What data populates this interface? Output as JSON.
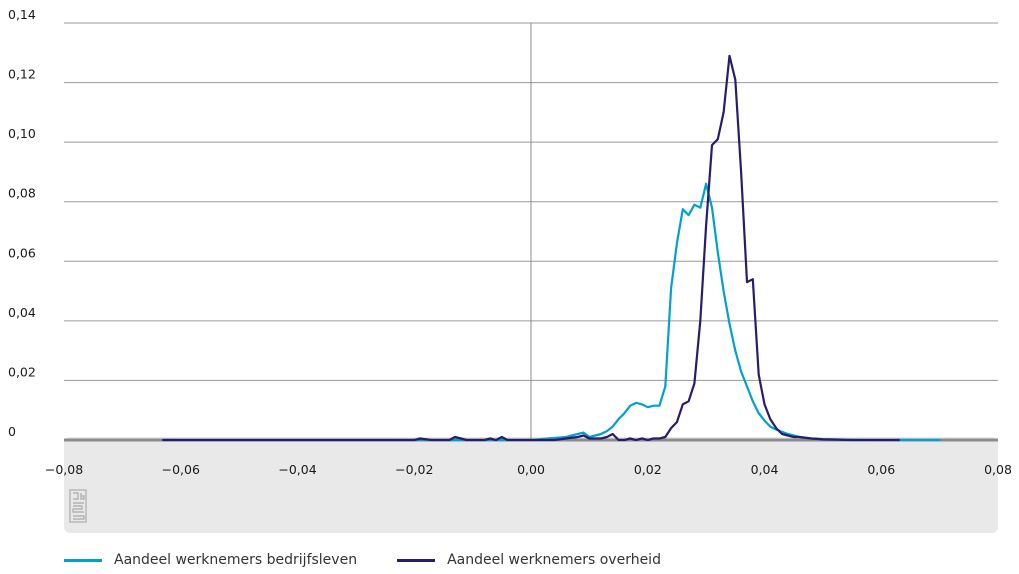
{
  "chart_data": {
    "type": "line",
    "xlim": [
      -0.08,
      0.08
    ],
    "ylim": [
      0,
      0.14
    ],
    "xticks": [
      -0.08,
      -0.06,
      -0.04,
      -0.02,
      0.0,
      0.02,
      0.04,
      0.06,
      0.08
    ],
    "yticks": [
      0,
      0.02,
      0.04,
      0.06,
      0.08,
      0.1,
      0.12,
      0.14
    ],
    "xtick_labels": [
      "−0,08",
      "−0,06",
      "−0,04",
      "−0,02",
      "0,00",
      "0,02",
      "0,04",
      "0,06",
      "0,08"
    ],
    "ytick_labels": [
      "0",
      "0,02",
      "0,04",
      "0,06",
      "0,08",
      "0,10",
      "0,12",
      "0,14"
    ],
    "grid": "horizontal",
    "legend_position": "bottom-left",
    "series": [
      {
        "name": "Aandeel werknemers bedrijfsleven",
        "color": "#00a1cd",
        "points": [
          [
            -0.063,
            0.0
          ],
          [
            -0.05,
            0.0
          ],
          [
            -0.04,
            0.0
          ],
          [
            -0.03,
            0.0
          ],
          [
            -0.02,
            0.0
          ],
          [
            -0.015,
            0.0
          ],
          [
            -0.01,
            0.0
          ],
          [
            -0.005,
            0.0
          ],
          [
            0.0,
            0.0
          ],
          [
            0.003,
            0.0005
          ],
          [
            0.006,
            0.001
          ],
          [
            0.008,
            0.002
          ],
          [
            0.009,
            0.0025
          ],
          [
            0.01,
            0.001
          ],
          [
            0.012,
            0.002
          ],
          [
            0.013,
            0.003
          ],
          [
            0.014,
            0.0045
          ],
          [
            0.015,
            0.007
          ],
          [
            0.016,
            0.009
          ],
          [
            0.017,
            0.0115
          ],
          [
            0.018,
            0.0125
          ],
          [
            0.019,
            0.012
          ],
          [
            0.02,
            0.011
          ],
          [
            0.021,
            0.0115
          ],
          [
            0.022,
            0.0115
          ],
          [
            0.023,
            0.018
          ],
          [
            0.024,
            0.051
          ],
          [
            0.025,
            0.066
          ],
          [
            0.026,
            0.0775
          ],
          [
            0.027,
            0.0755
          ],
          [
            0.028,
            0.079
          ],
          [
            0.029,
            0.078
          ],
          [
            0.03,
            0.086
          ],
          [
            0.031,
            0.078
          ],
          [
            0.032,
            0.063
          ],
          [
            0.033,
            0.05
          ],
          [
            0.034,
            0.039
          ],
          [
            0.035,
            0.03
          ],
          [
            0.036,
            0.023
          ],
          [
            0.037,
            0.018
          ],
          [
            0.038,
            0.013
          ],
          [
            0.039,
            0.009
          ],
          [
            0.04,
            0.0065
          ],
          [
            0.041,
            0.0045
          ],
          [
            0.042,
            0.0035
          ],
          [
            0.044,
            0.002
          ],
          [
            0.046,
            0.001
          ],
          [
            0.048,
            0.0005
          ],
          [
            0.05,
            0.0003
          ],
          [
            0.055,
            0.0001
          ],
          [
            0.06,
            0.0
          ],
          [
            0.065,
            0.0
          ],
          [
            0.07,
            0.0
          ]
        ]
      },
      {
        "name": "Aandeel werknemers overheid",
        "color": "#271d6c",
        "points": [
          [
            -0.063,
            0.0
          ],
          [
            -0.05,
            0.0
          ],
          [
            -0.04,
            0.0
          ],
          [
            -0.03,
            0.0
          ],
          [
            -0.02,
            0.0
          ],
          [
            -0.019,
            0.0005
          ],
          [
            -0.017,
            0.0
          ],
          [
            -0.014,
            0.0
          ],
          [
            -0.013,
            0.001
          ],
          [
            -0.012,
            0.0005
          ],
          [
            -0.011,
            0.0
          ],
          [
            -0.008,
            0.0
          ],
          [
            -0.007,
            0.0005
          ],
          [
            -0.006,
            0.0
          ],
          [
            -0.005,
            0.001
          ],
          [
            -0.004,
            0.0
          ],
          [
            0.0,
            0.0
          ],
          [
            0.004,
            0.0
          ],
          [
            0.006,
            0.0005
          ],
          [
            0.008,
            0.001
          ],
          [
            0.009,
            0.0015
          ],
          [
            0.01,
            0.0005
          ],
          [
            0.012,
            0.0005
          ],
          [
            0.013,
            0.001
          ],
          [
            0.014,
            0.002
          ],
          [
            0.015,
            0.0
          ],
          [
            0.016,
            0.0
          ],
          [
            0.017,
            0.0005
          ],
          [
            0.018,
            0.0
          ],
          [
            0.019,
            0.0005
          ],
          [
            0.02,
            0.0
          ],
          [
            0.021,
            0.0005
          ],
          [
            0.022,
            0.0005
          ],
          [
            0.023,
            0.001
          ],
          [
            0.024,
            0.004
          ],
          [
            0.025,
            0.006
          ],
          [
            0.026,
            0.012
          ],
          [
            0.027,
            0.013
          ],
          [
            0.028,
            0.019
          ],
          [
            0.029,
            0.04
          ],
          [
            0.03,
            0.072
          ],
          [
            0.031,
            0.099
          ],
          [
            0.032,
            0.101
          ],
          [
            0.033,
            0.11
          ],
          [
            0.034,
            0.129
          ],
          [
            0.035,
            0.121
          ],
          [
            0.036,
            0.09
          ],
          [
            0.037,
            0.053
          ],
          [
            0.038,
            0.054
          ],
          [
            0.039,
            0.022
          ],
          [
            0.04,
            0.012
          ],
          [
            0.041,
            0.007
          ],
          [
            0.042,
            0.004
          ],
          [
            0.043,
            0.002
          ],
          [
            0.044,
            0.0015
          ],
          [
            0.045,
            0.001
          ],
          [
            0.046,
            0.001
          ],
          [
            0.048,
            0.0005
          ],
          [
            0.05,
            0.0002
          ],
          [
            0.055,
            0.0
          ],
          [
            0.06,
            0.0
          ],
          [
            0.063,
            0.0
          ]
        ]
      }
    ]
  }
}
